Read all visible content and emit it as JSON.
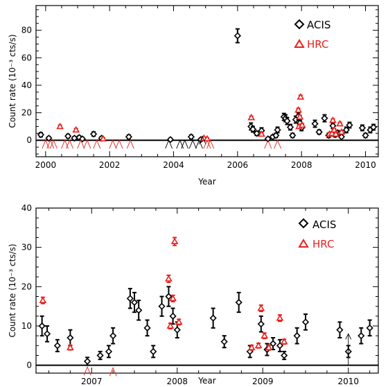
{
  "colors": {
    "acis": "#000000",
    "hrc": "#e8211c",
    "axis": "#000000"
  },
  "chart_data": [
    {
      "type": "scatter",
      "xlabel": "Year",
      "ylabel": "Count rate (10⁻³ cts/s)",
      "xlim": [
        1999.7,
        2010.4
      ],
      "ylim": [
        -12,
        98
      ],
      "xticks": [
        2000,
        2002,
        2004,
        2006,
        2008,
        2010
      ],
      "yticks": [
        0,
        20,
        40,
        60,
        80
      ],
      "zero_line": true,
      "legend_position": "top-right",
      "series": [
        {
          "name": "ACIS",
          "marker": "diamond",
          "color": "#000000",
          "points": [
            {
              "x": 1999.85,
              "y": 4.0,
              "err": 1.5
            },
            {
              "x": 2000.1,
              "y": 1.5,
              "err": 1.2
            },
            {
              "x": 2000.7,
              "y": 3.0,
              "err": 1.3
            },
            {
              "x": 2000.9,
              "y": 1.5,
              "err": 1.2
            },
            {
              "x": 2001.05,
              "y": 2.0,
              "err": 1.2
            },
            {
              "x": 2001.15,
              "y": 1.0,
              "err": 1.0
            },
            {
              "x": 2001.5,
              "y": 4.5,
              "err": 1.5
            },
            {
              "x": 2001.75,
              "y": 1.5,
              "err": 1.2
            },
            {
              "x": 2002.6,
              "y": 2.5,
              "err": 1.3
            },
            {
              "x": 2003.9,
              "y": 0.5,
              "err": 1.0
            },
            {
              "x": 2004.55,
              "y": 2.5,
              "err": 1.3
            },
            {
              "x": 2004.85,
              "y": 0.5,
              "err": 1.0
            },
            {
              "x": 2006.0,
              "y": 76.0,
              "err": 5.0
            },
            {
              "x": 2006.42,
              "y": 10.0,
              "err": 2.5
            },
            {
              "x": 2006.48,
              "y": 8.0,
              "err": 2.0
            },
            {
              "x": 2006.6,
              "y": 5.0,
              "err": 1.5
            },
            {
              "x": 2006.75,
              "y": 7.0,
              "err": 2.0
            },
            {
              "x": 2006.95,
              "y": 1.0,
              "err": 1.0
            },
            {
              "x": 2007.1,
              "y": 2.5,
              "err": 1.0
            },
            {
              "x": 2007.2,
              "y": 3.5,
              "err": 1.5
            },
            {
              "x": 2007.25,
              "y": 7.5,
              "err": 2.0
            },
            {
              "x": 2007.45,
              "y": 17.0,
              "err": 2.5
            },
            {
              "x": 2007.5,
              "y": 16.0,
              "err": 2.5
            },
            {
              "x": 2007.55,
              "y": 14.0,
              "err": 2.5
            },
            {
              "x": 2007.65,
              "y": 9.5,
              "err": 2.0
            },
            {
              "x": 2007.72,
              "y": 3.5,
              "err": 1.5
            },
            {
              "x": 2007.82,
              "y": 15.0,
              "err": 2.5
            },
            {
              "x": 2007.9,
              "y": 17.5,
              "err": 2.5
            },
            {
              "x": 2007.95,
              "y": 12.5,
              "err": 2.0
            },
            {
              "x": 2008.0,
              "y": 9.0,
              "err": 2.0
            },
            {
              "x": 2008.42,
              "y": 12.0,
              "err": 2.5
            },
            {
              "x": 2008.55,
              "y": 6.0,
              "err": 1.5
            },
            {
              "x": 2008.72,
              "y": 16.0,
              "err": 2.5
            },
            {
              "x": 2008.85,
              "y": 3.5,
              "err": 1.5
            },
            {
              "x": 2008.98,
              "y": 10.5,
              "err": 2.0
            },
            {
              "x": 2009.05,
              "y": 4.0,
              "err": 1.5
            },
            {
              "x": 2009.12,
              "y": 5.5,
              "err": 1.5
            },
            {
              "x": 2009.2,
              "y": 5.0,
              "err": 1.5
            },
            {
              "x": 2009.25,
              "y": 2.5,
              "err": 1.0
            },
            {
              "x": 2009.4,
              "y": 7.5,
              "err": 2.0
            },
            {
              "x": 2009.5,
              "y": 11.0,
              "err": 2.0
            },
            {
              "x": 2009.9,
              "y": 9.0,
              "err": 2.0
            },
            {
              "x": 2010.0,
              "y": 3.5,
              "err": 1.5
            },
            {
              "x": 2010.15,
              "y": 7.5,
              "err": 2.0
            },
            {
              "x": 2010.25,
              "y": 9.5,
              "err": 2.0
            }
          ]
        },
        {
          "name": "HRC",
          "marker": "triangle",
          "color": "#e8211c",
          "points": [
            {
              "x": 2000.45,
              "y": 10.0,
              "err": 1.0
            },
            {
              "x": 2000.95,
              "y": 7.5,
              "err": 1.0
            },
            {
              "x": 2001.8,
              "y": 1.0,
              "err": 0.8
            },
            {
              "x": 2004.95,
              "y": 1.5,
              "err": 0.8
            },
            {
              "x": 2005.05,
              "y": 1.0,
              "err": 0.8
            },
            {
              "x": 2006.43,
              "y": 16.5,
              "err": 1.0
            },
            {
              "x": 2006.75,
              "y": 4.5,
              "err": 1.0
            },
            {
              "x": 2007.9,
              "y": 22.0,
              "err": 1.2
            },
            {
              "x": 2007.92,
              "y": 10.0,
              "err": 1.0
            },
            {
              "x": 2007.95,
              "y": 17.0,
              "err": 1.0
            },
            {
              "x": 2007.97,
              "y": 31.5,
              "err": 1.2
            },
            {
              "x": 2008.02,
              "y": 11.0,
              "err": 1.0
            },
            {
              "x": 2008.87,
              "y": 4.5,
              "err": 1.0
            },
            {
              "x": 2008.95,
              "y": 5.0,
              "err": 1.0
            },
            {
              "x": 2008.98,
              "y": 14.5,
              "err": 1.0
            },
            {
              "x": 2009.02,
              "y": 7.5,
              "err": 1.0
            },
            {
              "x": 2009.07,
              "y": 4.5,
              "err": 1.0
            },
            {
              "x": 2009.2,
              "y": 12.0,
              "err": 1.0
            },
            {
              "x": 2009.25,
              "y": 6.0,
              "err": 1.0
            }
          ]
        },
        {
          "name": "",
          "marker": "upper-limit",
          "color": "#000000",
          "points": [
            {
              "x": 2003.85,
              "y": -1.0
            },
            {
              "x": 2004.2,
              "y": -1.0
            },
            {
              "x": 2004.35,
              "y": -1.0
            },
            {
              "x": 2004.6,
              "y": -1.0
            },
            {
              "x": 2004.8,
              "y": -1.0
            },
            {
              "x": 2004.9,
              "y": 2.0
            }
          ]
        },
        {
          "name": "",
          "marker": "upper-limit",
          "color": "#e8211c",
          "points": [
            {
              "x": 2000.0,
              "y": -1.0
            },
            {
              "x": 2000.15,
              "y": -1.0
            },
            {
              "x": 2000.25,
              "y": -1.0
            },
            {
              "x": 2000.6,
              "y": -1.0
            },
            {
              "x": 2000.75,
              "y": -1.0
            },
            {
              "x": 2001.1,
              "y": -1.0
            },
            {
              "x": 2001.3,
              "y": -1.0
            },
            {
              "x": 2001.6,
              "y": -1.0
            },
            {
              "x": 2002.1,
              "y": -1.0
            },
            {
              "x": 2002.3,
              "y": -1.0
            },
            {
              "x": 2002.65,
              "y": -1.0
            },
            {
              "x": 2005.05,
              "y": -1.0
            },
            {
              "x": 2005.15,
              "y": -1.0
            },
            {
              "x": 2006.95,
              "y": -1.0
            },
            {
              "x": 2007.25,
              "y": -1.0
            }
          ]
        }
      ]
    },
    {
      "type": "scatter",
      "xlabel": "Year",
      "ylabel": "Count rate (10⁻³ cts/s)",
      "xlim": [
        2006.35,
        2010.35
      ],
      "ylim": [
        -2,
        40
      ],
      "xticks": [
        2007,
        2008,
        2009,
        2010
      ],
      "yticks": [
        0,
        10,
        20,
        30,
        40
      ],
      "zero_line": true,
      "legend_position": "top-right",
      "arrow": {
        "x": 2010.0,
        "from_y": 0,
        "to_y": 8
      },
      "series": [
        {
          "name": "ACIS",
          "marker": "diamond",
          "color": "#000000",
          "points": [
            {
              "x": 2006.42,
              "y": 10.0,
              "err": 2.5
            },
            {
              "x": 2006.48,
              "y": 8.0,
              "err": 2.0
            },
            {
              "x": 2006.6,
              "y": 5.0,
              "err": 1.5
            },
            {
              "x": 2006.75,
              "y": 7.0,
              "err": 2.0
            },
            {
              "x": 2006.95,
              "y": 1.0,
              "err": 1.0
            },
            {
              "x": 2007.1,
              "y": 2.5,
              "err": 1.0
            },
            {
              "x": 2007.2,
              "y": 3.5,
              "err": 1.5
            },
            {
              "x": 2007.25,
              "y": 7.5,
              "err": 2.0
            },
            {
              "x": 2007.45,
              "y": 17.0,
              "err": 2.5
            },
            {
              "x": 2007.5,
              "y": 16.0,
              "err": 2.5
            },
            {
              "x": 2007.55,
              "y": 14.0,
              "err": 2.5
            },
            {
              "x": 2007.65,
              "y": 9.5,
              "err": 2.0
            },
            {
              "x": 2007.72,
              "y": 3.5,
              "err": 1.5
            },
            {
              "x": 2007.82,
              "y": 15.0,
              "err": 2.5
            },
            {
              "x": 2007.9,
              "y": 17.5,
              "err": 2.5
            },
            {
              "x": 2007.95,
              "y": 12.5,
              "err": 2.0
            },
            {
              "x": 2008.0,
              "y": 9.0,
              "err": 2.0
            },
            {
              "x": 2008.42,
              "y": 12.0,
              "err": 2.5
            },
            {
              "x": 2008.55,
              "y": 6.0,
              "err": 1.5
            },
            {
              "x": 2008.72,
              "y": 16.0,
              "err": 2.5
            },
            {
              "x": 2008.85,
              "y": 3.5,
              "err": 1.5
            },
            {
              "x": 2008.98,
              "y": 10.5,
              "err": 2.0
            },
            {
              "x": 2009.05,
              "y": 4.0,
              "err": 1.5
            },
            {
              "x": 2009.12,
              "y": 5.5,
              "err": 1.5
            },
            {
              "x": 2009.2,
              "y": 5.0,
              "err": 1.5
            },
            {
              "x": 2009.25,
              "y": 2.5,
              "err": 1.0
            },
            {
              "x": 2009.4,
              "y": 7.5,
              "err": 2.0
            },
            {
              "x": 2009.5,
              "y": 11.0,
              "err": 2.0
            },
            {
              "x": 2009.9,
              "y": 9.0,
              "err": 2.0
            },
            {
              "x": 2010.0,
              "y": 3.5,
              "err": 1.5
            },
            {
              "x": 2010.15,
              "y": 7.5,
              "err": 2.0
            },
            {
              "x": 2010.25,
              "y": 9.5,
              "err": 2.0
            }
          ]
        },
        {
          "name": "HRC",
          "marker": "triangle",
          "color": "#e8211c",
          "points": [
            {
              "x": 2006.43,
              "y": 16.5,
              "err": 0.8
            },
            {
              "x": 2006.75,
              "y": 4.5,
              "err": 0.6
            },
            {
              "x": 2007.9,
              "y": 22.0,
              "err": 0.9
            },
            {
              "x": 2007.92,
              "y": 10.0,
              "err": 0.7
            },
            {
              "x": 2007.95,
              "y": 17.0,
              "err": 0.8
            },
            {
              "x": 2007.97,
              "y": 31.5,
              "err": 1.0
            },
            {
              "x": 2008.02,
              "y": 11.0,
              "err": 0.7
            },
            {
              "x": 2008.87,
              "y": 4.5,
              "err": 0.6
            },
            {
              "x": 2008.95,
              "y": 5.0,
              "err": 0.6
            },
            {
              "x": 2008.98,
              "y": 14.5,
              "err": 0.8
            },
            {
              "x": 2009.02,
              "y": 7.5,
              "err": 0.7
            },
            {
              "x": 2009.07,
              "y": 4.5,
              "err": 0.6
            },
            {
              "x": 2009.2,
              "y": 12.0,
              "err": 0.8
            },
            {
              "x": 2009.25,
              "y": 6.0,
              "err": 0.6
            }
          ]
        },
        {
          "name": "",
          "marker": "upper-limit",
          "color": "#e8211c",
          "points": [
            {
              "x": 2006.95,
              "y": -0.8
            },
            {
              "x": 2007.25,
              "y": -1.0
            }
          ]
        }
      ]
    }
  ]
}
